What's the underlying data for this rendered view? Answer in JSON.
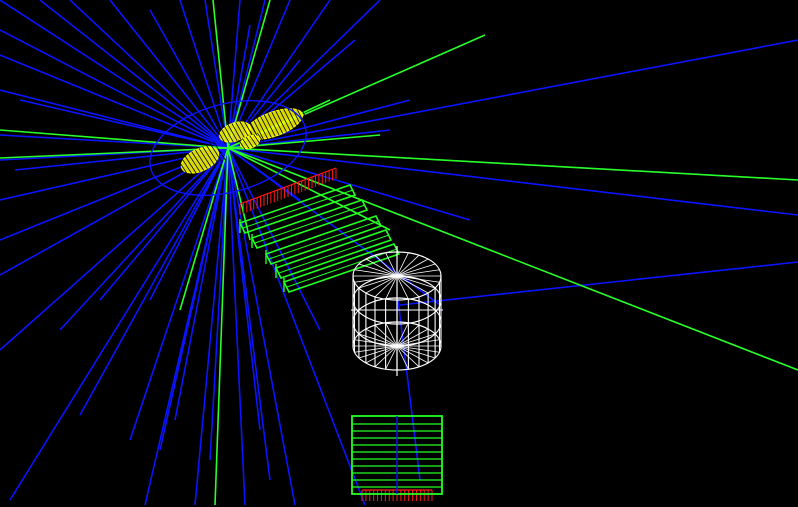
{
  "viewer": {
    "background": "#000000",
    "colors": {
      "track_blue": "#0a14ff",
      "track_green": "#27ff2a",
      "calorimeter_yellow": "#ffff00",
      "hits_red": "#ff1a1a",
      "chamber_green": "#22ff22",
      "cylinder_white": "#ffffff"
    },
    "icons": [
      "particle-tracks",
      "vertex-calorimeter",
      "tracking-chambers",
      "wireframe-cylinder",
      "stack-detector"
    ]
  }
}
